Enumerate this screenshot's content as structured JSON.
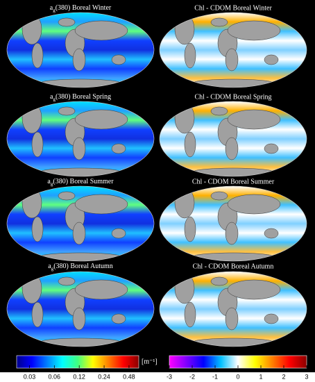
{
  "left_panels": [
    {
      "prefix": "a",
      "sub": "g",
      "rest": "(380) Boreal Winter"
    },
    {
      "prefix": "a",
      "sub": "g",
      "rest": "(380) Boreal Spring"
    },
    {
      "prefix": "a",
      "sub": "g",
      "rest": "(380) Boreal Summer"
    },
    {
      "prefix": "a",
      "sub": "g",
      "rest": "(380) Boreal Autumn"
    }
  ],
  "right_panels": [
    "Chl - CDOM Boreal Winter",
    "Chl - CDOM Boreal Spring",
    "Chl - CDOM Boreal Summer",
    "Chl - CDOM Boreal Autumn"
  ],
  "colorbars": [
    {
      "lim": [
        0.021,
        0.63
      ],
      "log": true,
      "ticks": [
        0.03,
        0.06,
        0.12,
        0.24,
        0.48
      ],
      "unit": "[m⁻¹]",
      "colors": [
        "#00008b",
        "#0000ff",
        "#0080ff",
        "#00ffff",
        "#40ff80",
        "#ffff00",
        "#ff8000",
        "#ff0000",
        "#8b0000"
      ]
    },
    {
      "lim": [
        -3,
        3
      ],
      "log": false,
      "ticks": [
        -3,
        -2,
        -1,
        0,
        1,
        2,
        3
      ],
      "colors": [
        "#ff00ff",
        "#8000ff",
        "#0000ff",
        "#00c0ff",
        "#ffffff",
        "#ffff00",
        "#ff8000",
        "#ff0000",
        "#8b0000"
      ]
    }
  ]
}
